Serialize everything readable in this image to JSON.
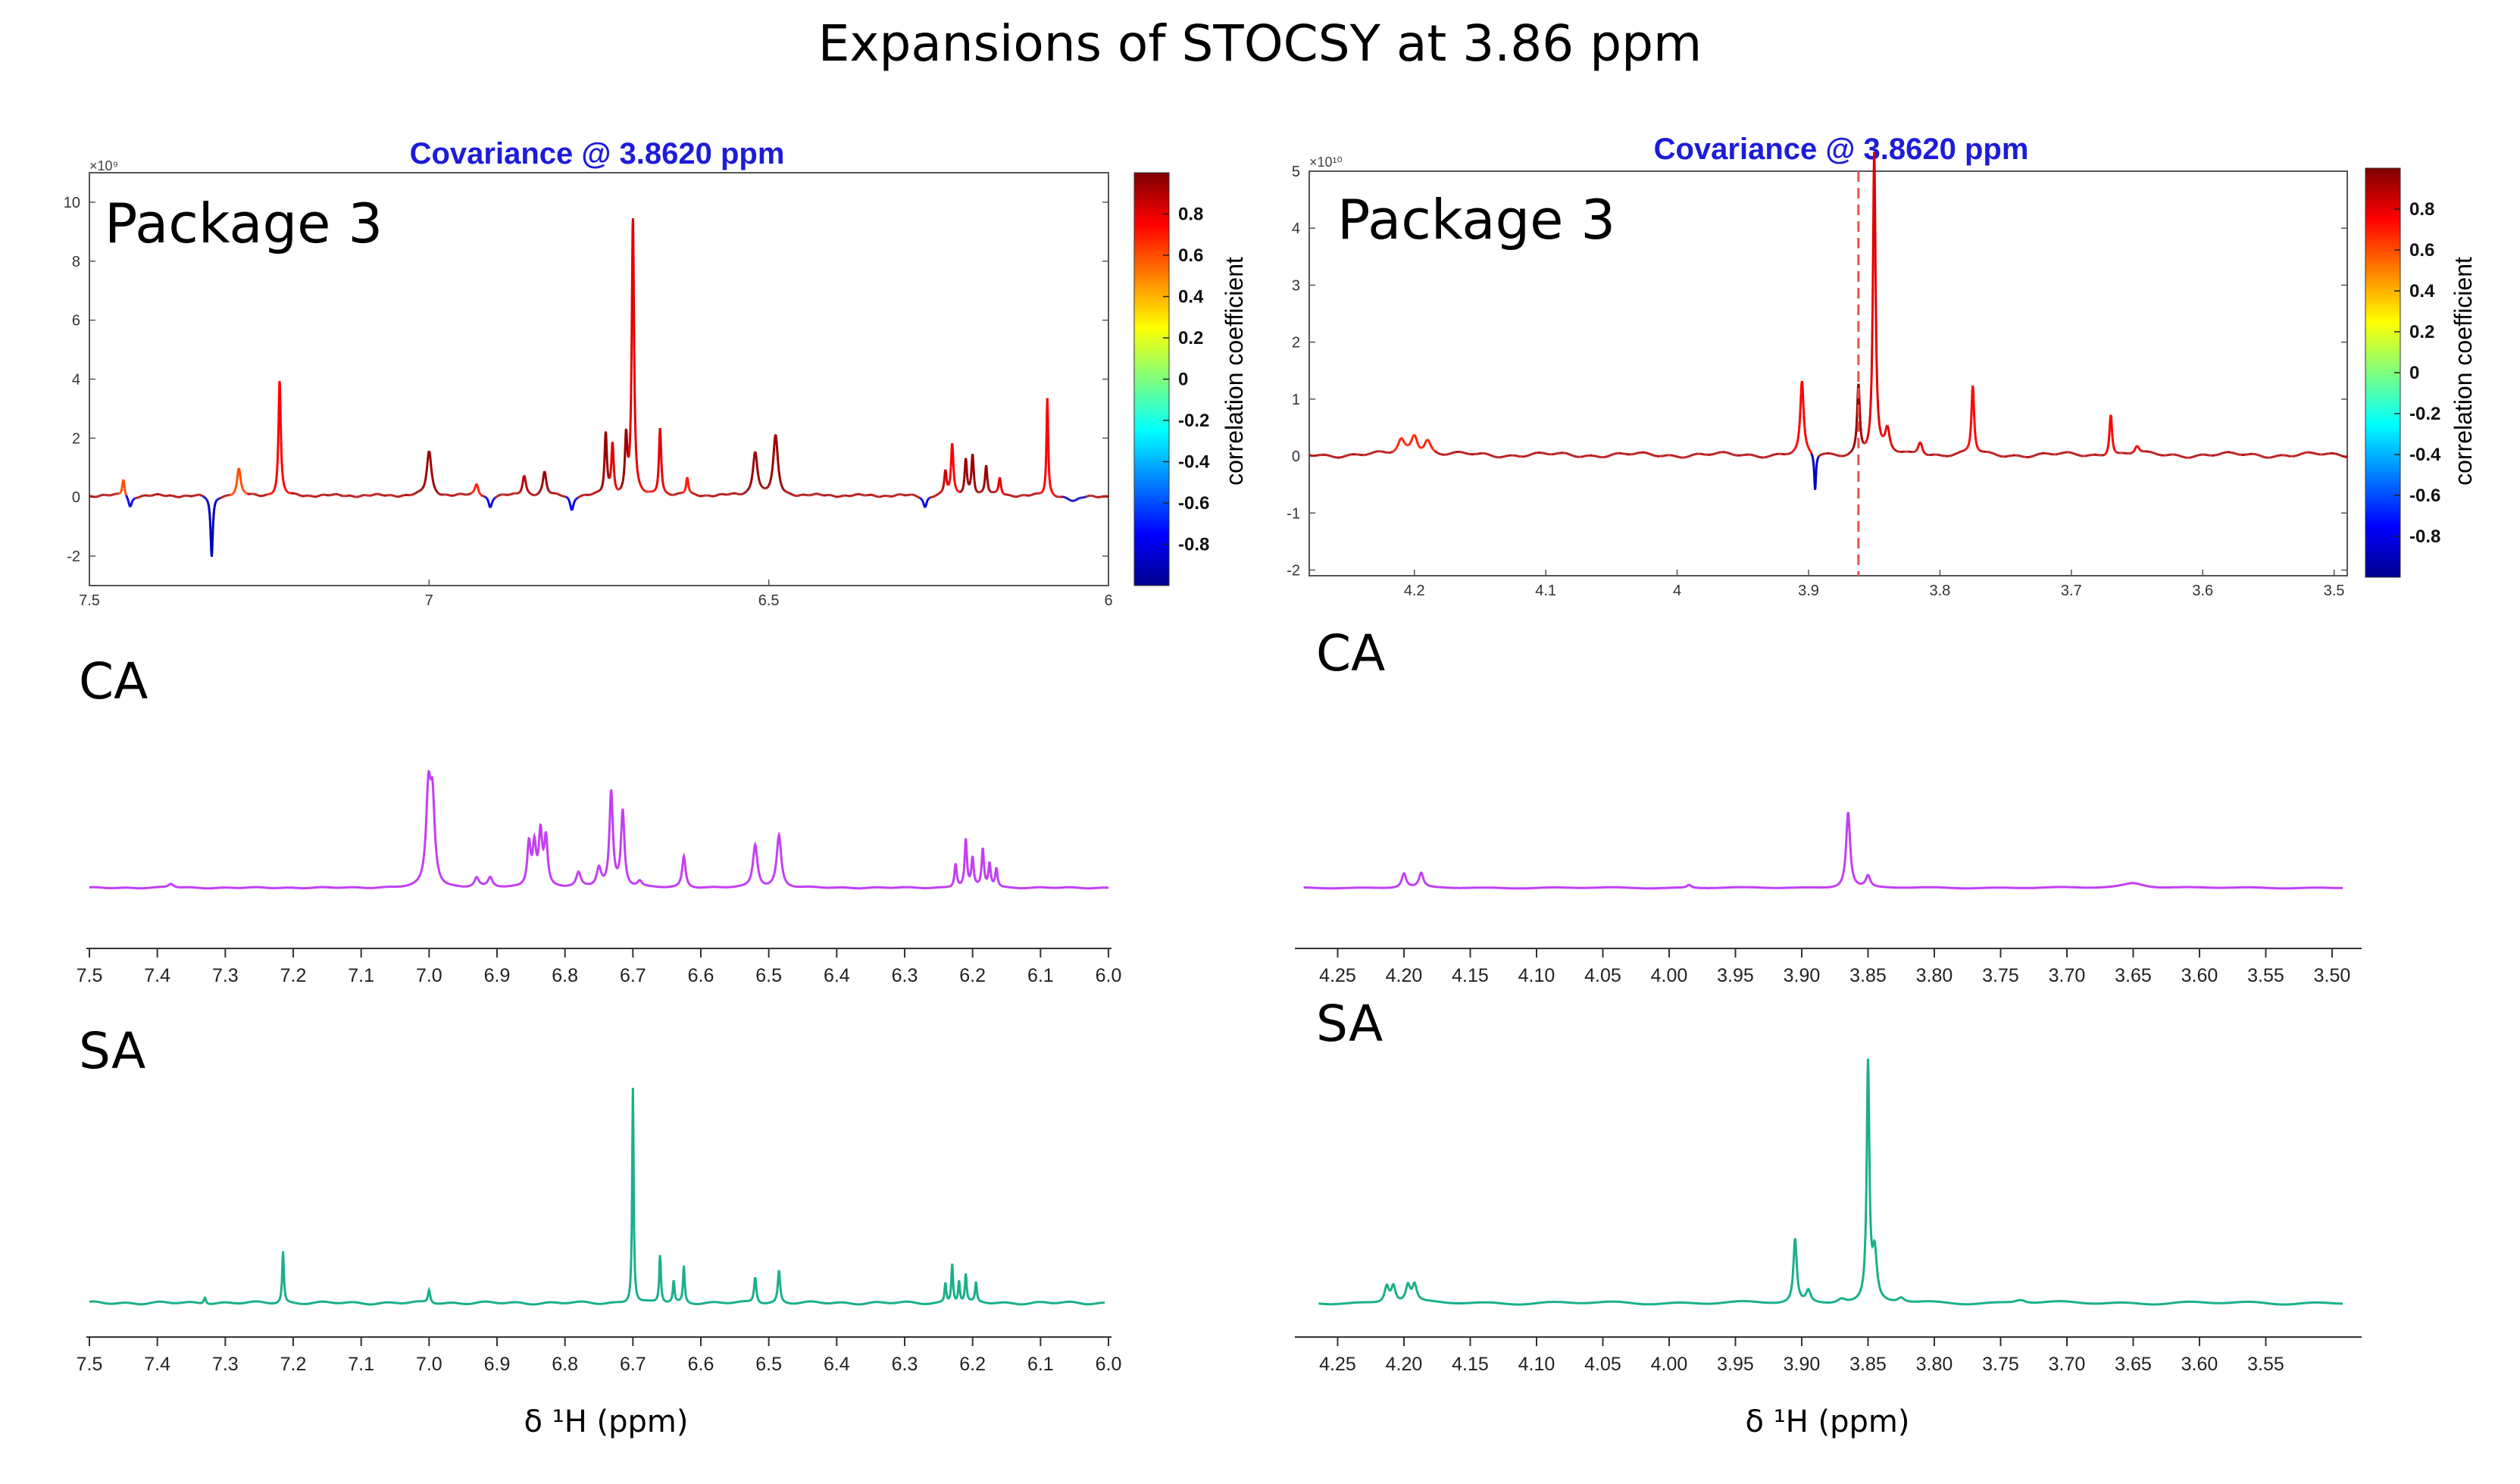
{
  "title": "Expansions of STOCSY at 3.86 ppm",
  "xlabel_symbol": "δ ¹H (ppm)",
  "panels": {
    "left": {
      "cov_title": "Covariance @ 3.8620 ppm",
      "package_label": "Package 3",
      "exponent": "×10⁹",
      "ca_label": "CA",
      "sa_label": "SA"
    },
    "right": {
      "cov_title": "Covariance @ 3.8620 ppm",
      "package_label": "Package 3",
      "exponent": "×10¹⁰",
      "ca_label": "CA",
      "sa_label": "SA"
    }
  },
  "colorbar": {
    "label": "correlation coefficient",
    "ticks": [
      "0.8",
      "0.6",
      "0.4",
      "0.2",
      "0",
      "-0.2",
      "-0.4",
      "-0.6",
      "-0.8"
    ]
  },
  "colors": {
    "ca_line": "#c33ff5",
    "sa_line": "#1ab08a",
    "cov_title": "#1c1cd9",
    "marker": "#e8524a"
  },
  "chart_data": [
    {
      "id": "cov-left",
      "type": "line",
      "title": "Covariance @ 3.8620 ppm",
      "xlim": [
        7.5,
        6.0
      ],
      "ylim": [
        -3,
        11
      ],
      "x_ticks": [
        7.5,
        7,
        6.5,
        6
      ],
      "x_tick_labels": [
        "7.5",
        "7",
        "6.5",
        "6"
      ],
      "y_ticks": [
        -2,
        0,
        2,
        4,
        6,
        8,
        10
      ],
      "y_tick_labels": [
        "-2",
        "0",
        "2",
        "4",
        "6",
        "8",
        "10"
      ],
      "baseline": 0.05,
      "peaks": [
        {
          "x": 7.45,
          "h": 0.6,
          "w": 0.002,
          "r": 0.6
        },
        {
          "x": 7.28,
          "h": 0.9,
          "w": 0.003,
          "r": 0.6
        },
        {
          "x": 7.22,
          "h": 3.9,
          "w": 0.002,
          "r": 0.75
        },
        {
          "x": 7.32,
          "h": -2.1,
          "w": 0.002,
          "r": -0.9
        },
        {
          "x": 7.44,
          "h": -0.4,
          "w": 0.003,
          "r": -0.8
        },
        {
          "x": 7.0,
          "h": 1.5,
          "w": 0.004,
          "r": 0.95
        },
        {
          "x": 6.93,
          "h": 0.4,
          "w": 0.003,
          "r": 0.7
        },
        {
          "x": 6.86,
          "h": 0.7,
          "w": 0.003,
          "r": 0.9
        },
        {
          "x": 6.83,
          "h": 0.8,
          "w": 0.003,
          "r": 0.95
        },
        {
          "x": 6.74,
          "h": 2.1,
          "w": 0.002,
          "r": 0.95
        },
        {
          "x": 6.73,
          "h": 1.7,
          "w": 0.002,
          "r": 0.8
        },
        {
          "x": 6.71,
          "h": 1.9,
          "w": 0.002,
          "r": 0.95
        },
        {
          "x": 6.7,
          "h": 9.4,
          "w": 0.002,
          "r": 0.8
        },
        {
          "x": 6.66,
          "h": 2.3,
          "w": 0.002,
          "r": 0.8
        },
        {
          "x": 6.62,
          "h": 0.6,
          "w": 0.002,
          "r": 0.7
        },
        {
          "x": 6.52,
          "h": 1.5,
          "w": 0.004,
          "r": 0.95
        },
        {
          "x": 6.49,
          "h": 2.0,
          "w": 0.004,
          "r": 0.95
        },
        {
          "x": 6.79,
          "h": -0.5,
          "w": 0.003,
          "r": -0.8
        },
        {
          "x": 6.91,
          "h": -0.4,
          "w": 0.003,
          "r": -0.8
        },
        {
          "x": 6.24,
          "h": 0.8,
          "w": 0.002,
          "r": 0.85
        },
        {
          "x": 6.23,
          "h": 1.7,
          "w": 0.002,
          "r": 0.75
        },
        {
          "x": 6.21,
          "h": 1.2,
          "w": 0.002,
          "r": 0.95
        },
        {
          "x": 6.2,
          "h": 1.4,
          "w": 0.002,
          "r": 0.95
        },
        {
          "x": 6.18,
          "h": 1.0,
          "w": 0.002,
          "r": 0.95
        },
        {
          "x": 6.16,
          "h": 0.6,
          "w": 0.002,
          "r": 0.8
        },
        {
          "x": 6.09,
          "h": 3.3,
          "w": 0.0015,
          "r": 0.75
        },
        {
          "x": 6.27,
          "h": -0.4,
          "w": 0.003,
          "r": -0.8
        },
        {
          "x": 6.05,
          "h": -0.2,
          "w": 0.01,
          "r": -0.9
        }
      ]
    },
    {
      "id": "cov-right",
      "type": "line",
      "title": "Covariance @ 3.8620 ppm",
      "xlim": [
        4.28,
        3.49
      ],
      "ylim": [
        -2.1,
        5
      ],
      "x_ticks": [
        4.2,
        4.1,
        4.0,
        3.9,
        3.8,
        3.7,
        3.6,
        3.5
      ],
      "x_tick_labels": [
        "4.2",
        "4.1",
        "4",
        "3.9",
        "3.8",
        "3.7",
        "3.6",
        "3.5"
      ],
      "y_ticks": [
        -2,
        -1,
        0,
        1,
        2,
        3,
        4,
        5
      ],
      "y_tick_labels": [
        "-2",
        "-1",
        "0",
        "1",
        "2",
        "3",
        "4",
        "5"
      ],
      "marker_x": 3.862,
      "baseline": 0.02,
      "peaks": [
        {
          "x": 4.21,
          "h": 0.25,
          "w": 0.003,
          "r": 0.7
        },
        {
          "x": 4.2,
          "h": 0.35,
          "w": 0.003,
          "r": 0.7
        },
        {
          "x": 4.19,
          "h": 0.25,
          "w": 0.003,
          "r": 0.7
        },
        {
          "x": 3.905,
          "h": 1.25,
          "w": 0.0015,
          "r": 0.75
        },
        {
          "x": 3.895,
          "h": -0.65,
          "w": 0.0008,
          "r": -0.9
        },
        {
          "x": 3.862,
          "h": 1.2,
          "w": 0.0012,
          "r": 0.95
        },
        {
          "x": 3.85,
          "h": 5.3,
          "w": 0.0012,
          "r": 0.8
        },
        {
          "x": 3.84,
          "h": 0.4,
          "w": 0.002,
          "r": 0.8
        },
        {
          "x": 3.815,
          "h": 0.25,
          "w": 0.002,
          "r": 0.8
        },
        {
          "x": 3.775,
          "h": 1.2,
          "w": 0.0012,
          "r": 0.75
        },
        {
          "x": 3.67,
          "h": 0.75,
          "w": 0.0012,
          "r": 0.75
        },
        {
          "x": 3.65,
          "h": 0.15,
          "w": 0.002,
          "r": 0.8
        }
      ]
    },
    {
      "id": "ca-left",
      "type": "line",
      "series_name": "CA",
      "xlim": [
        7.5,
        6.0
      ],
      "x_ticks": [
        7.5,
        7.4,
        7.3,
        7.2,
        7.1,
        7.0,
        6.9,
        6.8,
        6.7,
        6.6,
        6.5,
        6.4,
        6.3,
        6.2,
        6.1,
        6.0
      ],
      "x_tick_labels": [
        "7.5",
        "7.4",
        "7.3",
        "7.2",
        "7.1",
        "7.0",
        "6.9",
        "6.8",
        "6.7",
        "6.6",
        "6.5",
        "6.4",
        "6.3",
        "6.2",
        "6.1",
        "6.0"
      ],
      "peaks": [
        {
          "x": 7.38,
          "h": 0.04,
          "w": 0.005
        },
        {
          "x": 7.001,
          "h": 0.95,
          "w": 0.004
        },
        {
          "x": 6.995,
          "h": 0.85,
          "w": 0.004
        },
        {
          "x": 6.93,
          "h": 0.1,
          "w": 0.004
        },
        {
          "x": 6.91,
          "h": 0.1,
          "w": 0.004
        },
        {
          "x": 6.853,
          "h": 0.45,
          "w": 0.003
        },
        {
          "x": 6.845,
          "h": 0.42,
          "w": 0.003
        },
        {
          "x": 6.836,
          "h": 0.55,
          "w": 0.003
        },
        {
          "x": 6.828,
          "h": 0.5,
          "w": 0.003
        },
        {
          "x": 6.78,
          "h": 0.15,
          "w": 0.004
        },
        {
          "x": 6.75,
          "h": 0.2,
          "w": 0.004
        },
        {
          "x": 6.732,
          "h": 1.0,
          "w": 0.003
        },
        {
          "x": 6.715,
          "h": 0.8,
          "w": 0.003
        },
        {
          "x": 6.69,
          "h": 0.06,
          "w": 0.004
        },
        {
          "x": 6.625,
          "h": 0.33,
          "w": 0.003
        },
        {
          "x": 6.52,
          "h": 0.45,
          "w": 0.004
        },
        {
          "x": 6.485,
          "h": 0.55,
          "w": 0.004
        },
        {
          "x": 6.225,
          "h": 0.25,
          "w": 0.002
        },
        {
          "x": 6.21,
          "h": 0.5,
          "w": 0.002
        },
        {
          "x": 6.2,
          "h": 0.3,
          "w": 0.002
        },
        {
          "x": 6.185,
          "h": 0.4,
          "w": 0.002
        },
        {
          "x": 6.175,
          "h": 0.25,
          "w": 0.002
        },
        {
          "x": 6.165,
          "h": 0.2,
          "w": 0.002
        }
      ]
    },
    {
      "id": "ca-right",
      "type": "line",
      "series_name": "CA",
      "xlim": [
        4.28,
        3.48
      ],
      "x_ticks": [
        4.25,
        4.2,
        4.15,
        4.1,
        4.05,
        4.0,
        3.95,
        3.9,
        3.85,
        3.8,
        3.75,
        3.7,
        3.65,
        3.6,
        3.55,
        3.5
      ],
      "x_tick_labels": [
        "4.25",
        "4.20",
        "4.15",
        "4.10",
        "4.05",
        "4.00",
        "3.95",
        "3.90",
        "3.85",
        "3.80",
        "3.75",
        "3.70",
        "3.65",
        "3.60",
        "3.55",
        "3.50"
      ],
      "peaks": [
        {
          "x": 4.2,
          "h": 0.15,
          "w": 0.002
        },
        {
          "x": 4.187,
          "h": 0.15,
          "w": 0.002
        },
        {
          "x": 3.985,
          "h": 0.03,
          "w": 0.002
        },
        {
          "x": 3.865,
          "h": 0.8,
          "w": 0.0018
        },
        {
          "x": 3.85,
          "h": 0.12,
          "w": 0.002
        },
        {
          "x": 3.65,
          "h": 0.05,
          "w": 0.01
        }
      ]
    },
    {
      "id": "sa-left",
      "type": "line",
      "series_name": "SA",
      "xlim": [
        7.5,
        6.0
      ],
      "x_ticks": [
        7.5,
        7.4,
        7.3,
        7.2,
        7.1,
        7.0,
        6.9,
        6.8,
        6.7,
        6.6,
        6.5,
        6.4,
        6.3,
        6.2,
        6.1,
        6.0
      ],
      "x_tick_labels": [
        "7.5",
        "7.4",
        "7.3",
        "7.2",
        "7.1",
        "7.0",
        "6.9",
        "6.8",
        "6.7",
        "6.6",
        "6.5",
        "6.4",
        "6.3",
        "6.2",
        "6.1",
        "6.0"
      ],
      "peaks": [
        {
          "x": 7.33,
          "h": 0.03,
          "w": 0.002
        },
        {
          "x": 7.215,
          "h": 0.24,
          "w": 0.0015
        },
        {
          "x": 7.0,
          "h": 0.06,
          "w": 0.002
        },
        {
          "x": 6.7,
          "h": 1.0,
          "w": 0.0013
        },
        {
          "x": 6.66,
          "h": 0.22,
          "w": 0.0015
        },
        {
          "x": 6.64,
          "h": 0.1,
          "w": 0.0015
        },
        {
          "x": 6.625,
          "h": 0.17,
          "w": 0.0015
        },
        {
          "x": 6.52,
          "h": 0.12,
          "w": 0.002
        },
        {
          "x": 6.485,
          "h": 0.15,
          "w": 0.002
        },
        {
          "x": 6.24,
          "h": 0.09,
          "w": 0.0015
        },
        {
          "x": 6.23,
          "h": 0.18,
          "w": 0.0015
        },
        {
          "x": 6.22,
          "h": 0.1,
          "w": 0.0015
        },
        {
          "x": 6.21,
          "h": 0.13,
          "w": 0.0015
        },
        {
          "x": 6.195,
          "h": 0.09,
          "w": 0.0015
        }
      ]
    },
    {
      "id": "sa-right",
      "type": "line",
      "series_name": "SA",
      "xlim": [
        4.28,
        3.48
      ],
      "x_ticks": [
        4.25,
        4.2,
        4.15,
        4.1,
        4.05,
        4.0,
        3.95,
        3.9,
        3.85,
        3.8,
        3.75,
        3.7,
        3.65,
        3.6,
        3.55
      ],
      "x_tick_labels": [
        "4.25",
        "4.20",
        "4.15",
        "4.10",
        "4.05",
        "4.00",
        "3.95",
        "3.90",
        "3.85",
        "3.80",
        "3.75",
        "3.70",
        "3.65",
        "3.60",
        "3.55"
      ],
      "peaks": [
        {
          "x": 4.213,
          "h": 0.07,
          "w": 0.002
        },
        {
          "x": 4.208,
          "h": 0.07,
          "w": 0.002
        },
        {
          "x": 4.197,
          "h": 0.07,
          "w": 0.002
        },
        {
          "x": 4.192,
          "h": 0.07,
          "w": 0.002
        },
        {
          "x": 3.905,
          "h": 0.27,
          "w": 0.0015
        },
        {
          "x": 3.895,
          "h": 0.05,
          "w": 0.002
        },
        {
          "x": 3.87,
          "h": 0.02,
          "w": 0.004
        },
        {
          "x": 3.85,
          "h": 1.0,
          "w": 0.0012
        },
        {
          "x": 3.845,
          "h": 0.2,
          "w": 0.002
        },
        {
          "x": 3.825,
          "h": 0.02,
          "w": 0.003
        },
        {
          "x": 3.735,
          "h": 0.015,
          "w": 0.005
        }
      ]
    }
  ]
}
